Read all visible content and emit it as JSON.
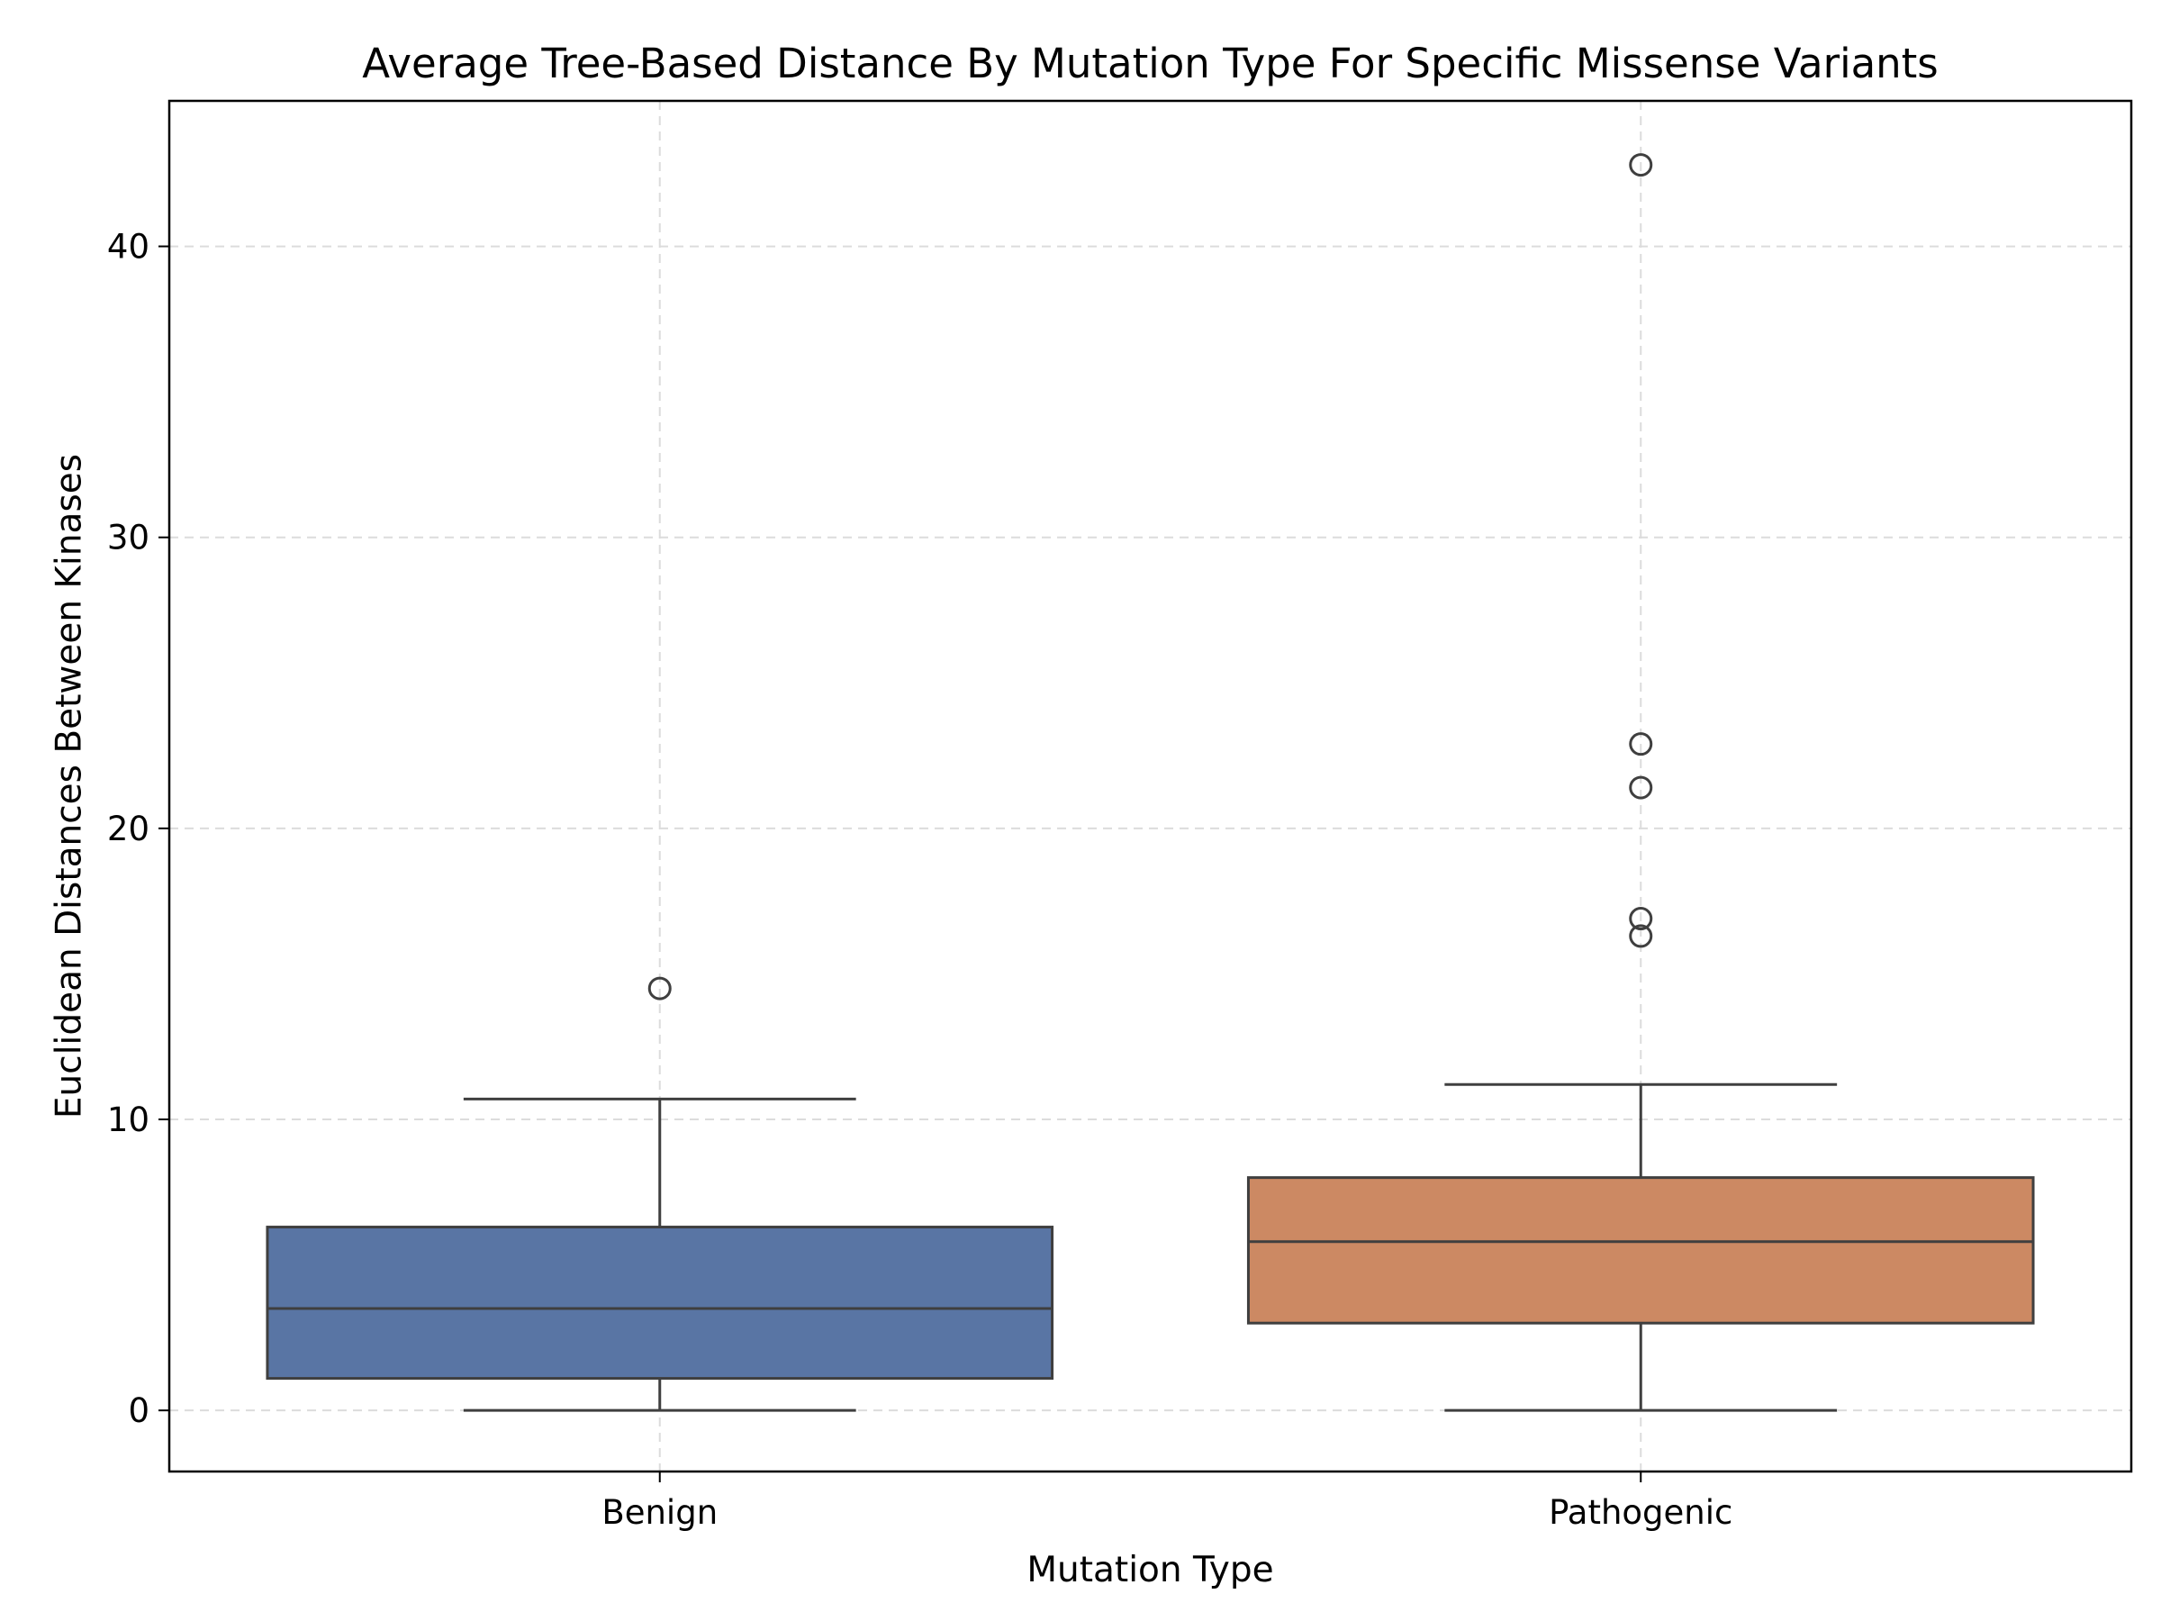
{
  "chart_data": {
    "type": "box",
    "title": "Average Tree-Based Distance By Mutation Type For Specific Missense Variants",
    "xlabel": "Mutation Type",
    "ylabel": "Euclidean Distances Between Kinases",
    "ylim": [
      -2.1,
      45
    ],
    "yticks": [
      0,
      10,
      20,
      30,
      40
    ],
    "categories": [
      "Benign",
      "Pathogenic"
    ],
    "grid": true,
    "boxes": [
      {
        "category": "Benign",
        "color": "#5975a4",
        "whisker_low": 0.0,
        "q1": 1.1,
        "median": 3.5,
        "q3": 6.3,
        "whisker_high": 10.7,
        "outliers": [
          14.5
        ]
      },
      {
        "category": "Pathogenic",
        "color": "#cc8963",
        "whisker_low": 0.0,
        "q1": 3.0,
        "median": 5.8,
        "q3": 8.0,
        "whisker_high": 11.2,
        "outliers": [
          16.3,
          16.9,
          21.4,
          22.9,
          42.8
        ]
      }
    ]
  }
}
